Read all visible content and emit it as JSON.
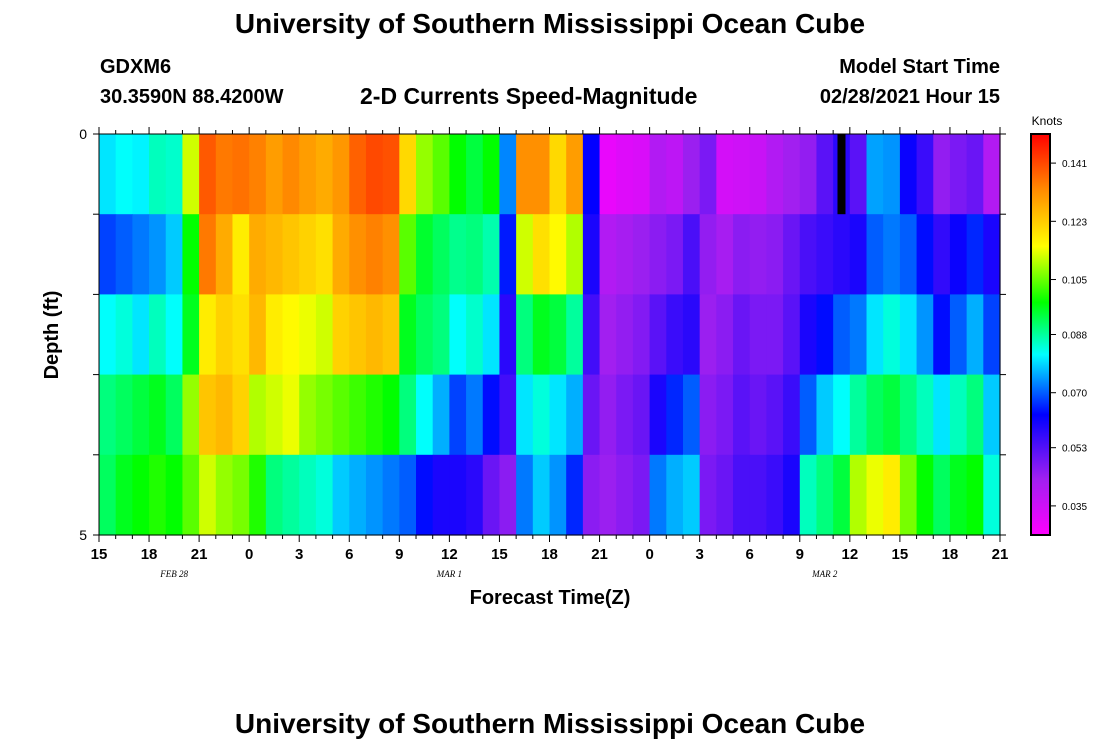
{
  "header": {
    "title": "University of Southern Mississippi Ocean Cube",
    "station": "GDXM6",
    "coords": "30.3590N 88.4200W",
    "chart_title": "2-D Currents Speed-Magnitude",
    "start_label": "Model Start Time",
    "start_value": "02/28/2021 Hour 15"
  },
  "footer": {
    "title": "University of Southern Mississippi Ocean Cube"
  },
  "chart_data": {
    "type": "heatmap",
    "title": "2-D Currents Speed-Magnitude",
    "xlabel": "Forecast Time(Z)",
    "ylabel": "Depth (ft)",
    "x_start_hour": 15,
    "x_range_hours": [
      0,
      54
    ],
    "x_tick_labels": [
      "15",
      "18",
      "21",
      "0",
      "3",
      "6",
      "9",
      "12",
      "15",
      "18",
      "21",
      "0",
      "3",
      "6",
      "9",
      "12",
      "15",
      "18",
      "21"
    ],
    "date_labels": [
      {
        "text": "FEB 28",
        "hour": 4.5
      },
      {
        "text": "MAR 1",
        "hour": 21
      },
      {
        "text": "MAR 2",
        "hour": 43.5
      }
    ],
    "ylim": [
      0,
      5
    ],
    "y_tick_labels": [
      "0",
      "5"
    ],
    "depth_layers": 5,
    "colorbar": {
      "label": "Knots",
      "min": 0.026,
      "max": 0.15,
      "ticks": [
        "0.141",
        "0.123",
        "0.105",
        "0.088",
        "0.070",
        "0.053",
        "0.035"
      ],
      "tick_values": [
        0.141,
        0.123,
        0.105,
        0.088,
        0.07,
        0.053,
        0.035
      ],
      "colors": [
        "#ff00ff",
        "#a020f0",
        "#0000ff",
        "#00ffff",
        "#00ff00",
        "#ffff00",
        "#ff8c00",
        "#ff0000"
      ]
    },
    "layer_values": [
      [
        0.08,
        0.082,
        0.081,
        0.086,
        0.085,
        0.112,
        0.139,
        0.135,
        0.136,
        0.134,
        0.13,
        0.133,
        0.13,
        0.128,
        0.131,
        0.138,
        0.141,
        0.14,
        0.121,
        0.108,
        0.104,
        0.098,
        0.094,
        0.098,
        0.073,
        0.132,
        0.132,
        0.121,
        0.13,
        0.063,
        0.03,
        0.032,
        0.033,
        0.04,
        0.038,
        0.044,
        0.048,
        0.034,
        0.035,
        0.036,
        0.04,
        0.043,
        0.045,
        0.052,
        0.058,
        0.052,
        0.075,
        0.074,
        0.062,
        0.056,
        0.045,
        0.048,
        0.05,
        0.04
      ],
      [
        0.068,
        0.07,
        0.072,
        0.074,
        0.078,
        0.098,
        0.135,
        0.128,
        0.118,
        0.128,
        0.126,
        0.124,
        0.122,
        0.12,
        0.128,
        0.132,
        0.134,
        0.132,
        0.104,
        0.095,
        0.092,
        0.089,
        0.09,
        0.087,
        0.065,
        0.112,
        0.12,
        0.116,
        0.11,
        0.06,
        0.04,
        0.042,
        0.044,
        0.046,
        0.048,
        0.054,
        0.045,
        0.042,
        0.046,
        0.045,
        0.046,
        0.05,
        0.054,
        0.056,
        0.058,
        0.06,
        0.07,
        0.072,
        0.07,
        0.064,
        0.057,
        0.062,
        0.066,
        0.06
      ],
      [
        0.082,
        0.084,
        0.08,
        0.086,
        0.082,
        0.096,
        0.118,
        0.122,
        0.12,
        0.126,
        0.118,
        0.116,
        0.114,
        0.112,
        0.122,
        0.124,
        0.126,
        0.124,
        0.096,
        0.092,
        0.09,
        0.082,
        0.085,
        0.08,
        0.058,
        0.09,
        0.096,
        0.094,
        0.088,
        0.055,
        0.043,
        0.045,
        0.047,
        0.052,
        0.056,
        0.058,
        0.044,
        0.046,
        0.05,
        0.048,
        0.048,
        0.052,
        0.06,
        0.064,
        0.07,
        0.072,
        0.08,
        0.084,
        0.08,
        0.074,
        0.064,
        0.07,
        0.076,
        0.068
      ],
      [
        0.09,
        0.092,
        0.094,
        0.096,
        0.092,
        0.108,
        0.124,
        0.126,
        0.122,
        0.11,
        0.112,
        0.114,
        0.108,
        0.106,
        0.104,
        0.102,
        0.1,
        0.098,
        0.09,
        0.082,
        0.076,
        0.068,
        0.072,
        0.064,
        0.055,
        0.08,
        0.084,
        0.08,
        0.076,
        0.05,
        0.045,
        0.048,
        0.05,
        0.06,
        0.066,
        0.07,
        0.046,
        0.048,
        0.052,
        0.05,
        0.052,
        0.056,
        0.07,
        0.078,
        0.082,
        0.088,
        0.092,
        0.094,
        0.09,
        0.086,
        0.08,
        0.086,
        0.09,
        0.078
      ],
      [
        0.092,
        0.096,
        0.098,
        0.1,
        0.098,
        0.104,
        0.112,
        0.108,
        0.106,
        0.1,
        0.09,
        0.088,
        0.086,
        0.084,
        0.078,
        0.076,
        0.074,
        0.072,
        0.07,
        0.064,
        0.06,
        0.06,
        0.058,
        0.05,
        0.046,
        0.072,
        0.078,
        0.074,
        0.066,
        0.046,
        0.044,
        0.046,
        0.048,
        0.072,
        0.076,
        0.078,
        0.048,
        0.05,
        0.054,
        0.054,
        0.056,
        0.06,
        0.086,
        0.09,
        0.094,
        0.11,
        0.114,
        0.118,
        0.106,
        0.098,
        0.092,
        0.096,
        0.098,
        0.084
      ]
    ],
    "missing_cells": [
      {
        "hour": 44.5,
        "layer": 0
      }
    ]
  }
}
